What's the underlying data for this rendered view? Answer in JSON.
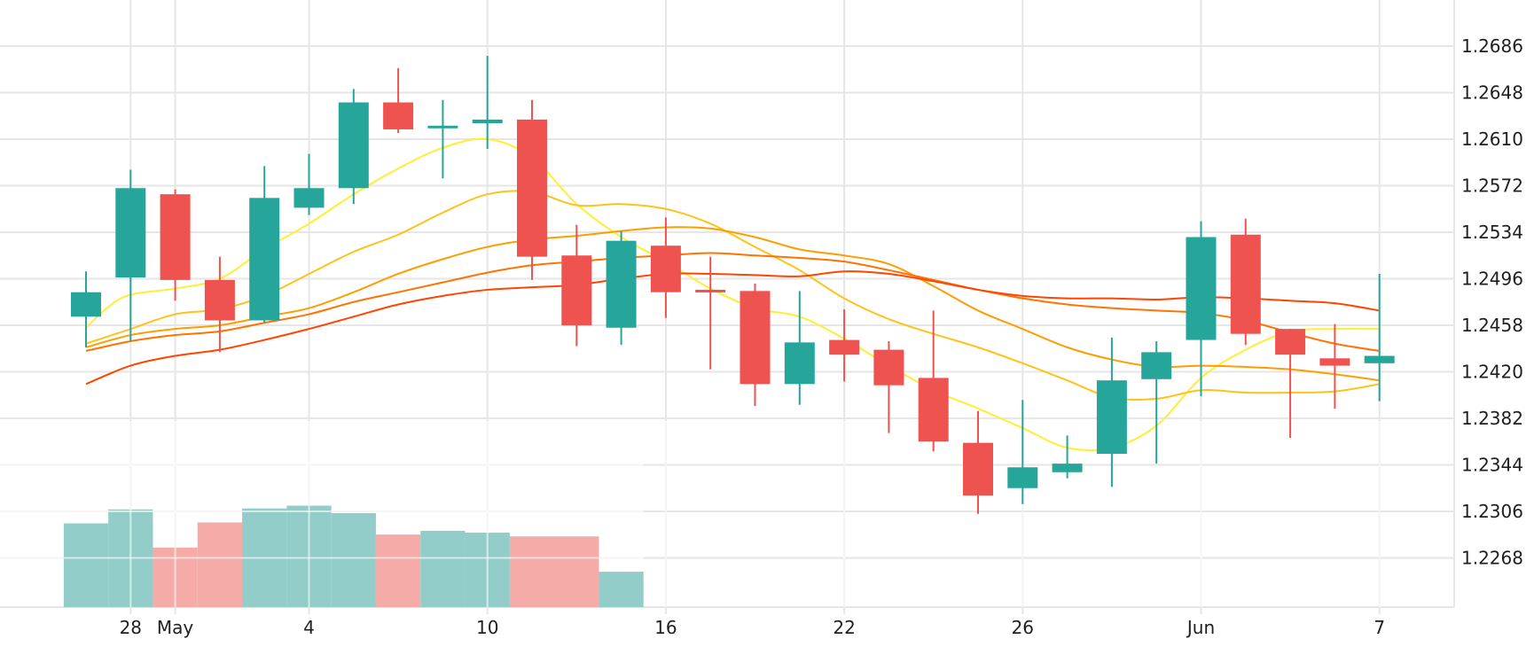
{
  "chart_data": {
    "type": "candlestick",
    "x_ticks": [
      {
        "label": "28",
        "day": 1
      },
      {
        "label": "May",
        "day": 2
      },
      {
        "label": "4",
        "day": 5
      },
      {
        "label": "10",
        "day": 9
      },
      {
        "label": "16",
        "day": 13
      },
      {
        "label": "22",
        "day": 17
      },
      {
        "label": "26",
        "day": 21
      },
      {
        "label": "Jun",
        "day": 25
      },
      {
        "label": "7",
        "day": 29
      }
    ],
    "y_ticks": [
      "1.2686",
      "1.2648",
      "1.2610",
      "1.2572",
      "1.2534",
      "1.2496",
      "1.2458",
      "1.2420",
      "1.2382",
      "1.2344",
      "1.2306",
      "1.2268"
    ],
    "ylim": [
      1.2218,
      1.2716
    ],
    "grid": true,
    "colors": {
      "up": "#26a69a",
      "down": "#ef5350",
      "up_volume": "#92cdc9",
      "down_volume": "#f5aca9",
      "grid": "#e6e6e6",
      "axis_text": "#1f1f1f"
    },
    "candles": [
      {
        "day": 0,
        "open": 1.2465,
        "high": 1.2502,
        "low": 1.244,
        "close": 1.2485
      },
      {
        "day": 1,
        "open": 1.2497,
        "high": 1.2585,
        "low": 1.2445,
        "close": 1.257
      },
      {
        "day": 2,
        "open": 1.2565,
        "high": 1.2569,
        "low": 1.2478,
        "close": 1.2495
      },
      {
        "day": 3,
        "open": 1.2495,
        "high": 1.2514,
        "low": 1.2436,
        "close": 1.2462
      },
      {
        "day": 4,
        "open": 1.2462,
        "high": 1.2588,
        "low": 1.246,
        "close": 1.2562
      },
      {
        "day": 5,
        "open": 1.2554,
        "high": 1.2598,
        "low": 1.2548,
        "close": 1.257
      },
      {
        "day": 6,
        "open": 1.257,
        "high": 1.2651,
        "low": 1.2557,
        "close": 1.264
      },
      {
        "day": 7,
        "open": 1.264,
        "high": 1.2668,
        "low": 1.2615,
        "close": 1.2618
      },
      {
        "day": 8,
        "open": 1.262,
        "high": 1.2642,
        "low": 1.2578,
        "close": 1.2621
      },
      {
        "day": 9,
        "open": 1.2623,
        "high": 1.2678,
        "low": 1.2602,
        "close": 1.2626
      },
      {
        "day": 10,
        "open": 1.2626,
        "high": 1.2642,
        "low": 1.2495,
        "close": 1.2514
      },
      {
        "day": 11,
        "open": 1.2515,
        "high": 1.254,
        "low": 1.2441,
        "close": 1.2458
      },
      {
        "day": 12,
        "open": 1.2456,
        "high": 1.2535,
        "low": 1.2442,
        "close": 1.2527
      },
      {
        "day": 13,
        "open": 1.2523,
        "high": 1.2546,
        "low": 1.2464,
        "close": 1.2485
      },
      {
        "day": 14,
        "open": 1.2487,
        "high": 1.2514,
        "low": 1.2422,
        "close": 1.2485
      },
      {
        "day": 15,
        "open": 1.2486,
        "high": 1.2492,
        "low": 1.2392,
        "close": 1.241
      },
      {
        "day": 16,
        "open": 1.241,
        "high": 1.2486,
        "low": 1.2393,
        "close": 1.2444
      },
      {
        "day": 17,
        "open": 1.2446,
        "high": 1.2471,
        "low": 1.2412,
        "close": 1.2434
      },
      {
        "day": 18,
        "open": 1.2438,
        "high": 1.2445,
        "low": 1.237,
        "close": 1.2409
      },
      {
        "day": 19,
        "open": 1.2415,
        "high": 1.247,
        "low": 1.2355,
        "close": 1.2363
      },
      {
        "day": 20,
        "open": 1.2362,
        "high": 1.2388,
        "low": 1.2304,
        "close": 1.2319
      },
      {
        "day": 21,
        "open": 1.2325,
        "high": 1.2397,
        "low": 1.2312,
        "close": 1.2342
      },
      {
        "day": 22,
        "open": 1.2338,
        "high": 1.2368,
        "low": 1.2333,
        "close": 1.2345
      },
      {
        "day": 23,
        "open": 1.2353,
        "high": 1.2448,
        "low": 1.2326,
        "close": 1.2413
      },
      {
        "day": 24,
        "open": 1.2414,
        "high": 1.2445,
        "low": 1.2345,
        "close": 1.2436
      },
      {
        "day": 25,
        "open": 1.2446,
        "high": 1.2543,
        "low": 1.24,
        "close": 1.253
      },
      {
        "day": 26,
        "open": 1.2532,
        "high": 1.2545,
        "low": 1.2442,
        "close": 1.2451
      },
      {
        "day": 27,
        "open": 1.2455,
        "high": 1.2455,
        "low": 1.2366,
        "close": 1.2434
      },
      {
        "day": 28,
        "open": 1.2431,
        "high": 1.2459,
        "low": 1.239,
        "close": 1.2425
      },
      {
        "day": 29,
        "open": 1.2427,
        "high": 1.25,
        "low": 1.2396,
        "close": 1.2433
      }
    ],
    "volume_scale_max": 20,
    "volumes": [
      {
        "start": -0.5,
        "end": 0.5,
        "value": 9.0,
        "dir": "up"
      },
      {
        "start": 0.5,
        "end": 1.5,
        "value": 10.5,
        "dir": "up"
      },
      {
        "start": 1.5,
        "end": 2.5,
        "value": 6.4,
        "dir": "down"
      },
      {
        "start": 2.5,
        "end": 3.5,
        "value": 9.1,
        "dir": "down"
      },
      {
        "start": 3.5,
        "end": 4.5,
        "value": 10.6,
        "dir": "up"
      },
      {
        "start": 4.5,
        "end": 5.5,
        "value": 10.9,
        "dir": "up"
      },
      {
        "start": 5.5,
        "end": 6.5,
        "value": 10.1,
        "dir": "up"
      },
      {
        "start": 6.5,
        "end": 7.5,
        "value": 7.8,
        "dir": "down"
      },
      {
        "start": 7.5,
        "end": 8.5,
        "value": 8.2,
        "dir": "up"
      },
      {
        "start": 8.5,
        "end": 9.5,
        "value": 8.0,
        "dir": "up"
      },
      {
        "start": 9.5,
        "end": 11.5,
        "value": 7.6,
        "dir": "down"
      },
      {
        "start": 11.5,
        "end": 12.5,
        "value": 3.8,
        "dir": "up"
      }
    ],
    "moving_averages": [
      {
        "color": "#ffee33",
        "points": [
          [
            0,
            1.2456
          ],
          [
            0.5,
            1.2473
          ],
          [
            1,
            1.2483
          ],
          [
            2,
            1.2488
          ],
          [
            3,
            1.2496
          ],
          [
            4,
            1.252
          ],
          [
            5,
            1.2541
          ],
          [
            6,
            1.2565
          ],
          [
            7,
            1.2586
          ],
          [
            8,
            1.2603
          ],
          [
            9,
            1.261
          ],
          [
            10,
            1.2595
          ],
          [
            11,
            1.2557
          ],
          [
            12,
            1.253
          ],
          [
            13,
            1.251
          ],
          [
            14,
            1.2488
          ],
          [
            15,
            1.2472
          ],
          [
            16,
            1.2465
          ],
          [
            17,
            1.2447
          ],
          [
            18,
            1.2425
          ],
          [
            19,
            1.2405
          ],
          [
            20,
            1.239
          ],
          [
            21,
            1.2374
          ],
          [
            22,
            1.2358
          ],
          [
            23,
            1.2358
          ],
          [
            24,
            1.2376
          ],
          [
            25,
            1.2415
          ],
          [
            26,
            1.2438
          ],
          [
            27,
            1.2453
          ],
          [
            28,
            1.2455
          ],
          [
            29,
            1.2455
          ]
        ]
      },
      {
        "color": "#ffc21a",
        "points": [
          [
            0,
            1.2443
          ],
          [
            1,
            1.2455
          ],
          [
            2,
            1.2467
          ],
          [
            3,
            1.2471
          ],
          [
            4,
            1.2482
          ],
          [
            5,
            1.25
          ],
          [
            6,
            1.2518
          ],
          [
            7,
            1.2532
          ],
          [
            8,
            1.255
          ],
          [
            9,
            1.2565
          ],
          [
            10,
            1.2567
          ],
          [
            11,
            1.2556
          ],
          [
            12,
            1.2557
          ],
          [
            13,
            1.2553
          ],
          [
            14,
            1.2541
          ],
          [
            15,
            1.2522
          ],
          [
            16,
            1.2503
          ],
          [
            17,
            1.248
          ],
          [
            18,
            1.2463
          ],
          [
            19,
            1.2451
          ],
          [
            20,
            1.244
          ],
          [
            21,
            1.2427
          ],
          [
            22,
            1.2413
          ],
          [
            23,
            1.2399
          ],
          [
            24,
            1.2398
          ],
          [
            25,
            1.2405
          ],
          [
            26,
            1.2403
          ],
          [
            27,
            1.2403
          ],
          [
            28,
            1.2404
          ],
          [
            29,
            1.241
          ]
        ]
      },
      {
        "color": "#ff9d00",
        "points": [
          [
            0,
            1.244
          ],
          [
            1,
            1.245
          ],
          [
            2,
            1.2455
          ],
          [
            3,
            1.2458
          ],
          [
            4,
            1.2465
          ],
          [
            5,
            1.2472
          ],
          [
            6,
            1.2485
          ],
          [
            7,
            1.25
          ],
          [
            8,
            1.2512
          ],
          [
            9,
            1.2522
          ],
          [
            10,
            1.2528
          ],
          [
            11,
            1.2531
          ],
          [
            12,
            1.2535
          ],
          [
            13,
            1.2538
          ],
          [
            14,
            1.2537
          ],
          [
            15,
            1.253
          ],
          [
            16,
            1.252
          ],
          [
            17,
            1.2515
          ],
          [
            18,
            1.2508
          ],
          [
            19,
            1.249
          ],
          [
            20,
            1.247
          ],
          [
            21,
            1.2455
          ],
          [
            22,
            1.244
          ],
          [
            23,
            1.243
          ],
          [
            24,
            1.2424
          ],
          [
            25,
            1.2425
          ],
          [
            26,
            1.2424
          ],
          [
            27,
            1.2422
          ],
          [
            28,
            1.2418
          ],
          [
            29,
            1.2413
          ]
        ]
      },
      {
        "color": "#ff7300",
        "points": [
          [
            0,
            1.2437
          ],
          [
            1,
            1.2445
          ],
          [
            2,
            1.245
          ],
          [
            3,
            1.2453
          ],
          [
            4,
            1.246
          ],
          [
            5,
            1.2467
          ],
          [
            6,
            1.2477
          ],
          [
            7,
            1.2485
          ],
          [
            8,
            1.2493
          ],
          [
            9,
            1.2501
          ],
          [
            10,
            1.2507
          ],
          [
            11,
            1.251
          ],
          [
            12,
            1.2513
          ],
          [
            13,
            1.2515
          ],
          [
            14,
            1.2517
          ],
          [
            15,
            1.2515
          ],
          [
            16,
            1.2513
          ],
          [
            17,
            1.251
          ],
          [
            18,
            1.2503
          ],
          [
            19,
            1.2495
          ],
          [
            20,
            1.2487
          ],
          [
            21,
            1.248
          ],
          [
            22,
            1.2475
          ],
          [
            23,
            1.2472
          ],
          [
            24,
            1.247
          ],
          [
            25,
            1.2468
          ],
          [
            26,
            1.2462
          ],
          [
            27,
            1.2452
          ],
          [
            28,
            1.2443
          ],
          [
            29,
            1.2437
          ]
        ]
      },
      {
        "color": "#ff4500",
        "points": [
          [
            0,
            1.241
          ],
          [
            1,
            1.2425
          ],
          [
            2,
            1.2433
          ],
          [
            3,
            1.2438
          ],
          [
            4,
            1.2446
          ],
          [
            5,
            1.2455
          ],
          [
            6,
            1.2465
          ],
          [
            7,
            1.2475
          ],
          [
            8,
            1.2482
          ],
          [
            9,
            1.2487
          ],
          [
            10,
            1.2489
          ],
          [
            11,
            1.2491
          ],
          [
            12,
            1.2496
          ],
          [
            13,
            1.25
          ],
          [
            14,
            1.25
          ],
          [
            15,
            1.2499
          ],
          [
            16,
            1.2498
          ],
          [
            17,
            1.2502
          ],
          [
            18,
            1.25
          ],
          [
            19,
            1.2494
          ],
          [
            20,
            1.2487
          ],
          [
            21,
            1.2482
          ],
          [
            22,
            1.248
          ],
          [
            23,
            1.248
          ],
          [
            24,
            1.2479
          ],
          [
            25,
            1.2481
          ],
          [
            26,
            1.248
          ],
          [
            27,
            1.2478
          ],
          [
            28,
            1.2476
          ],
          [
            29,
            1.247
          ]
        ]
      }
    ]
  }
}
